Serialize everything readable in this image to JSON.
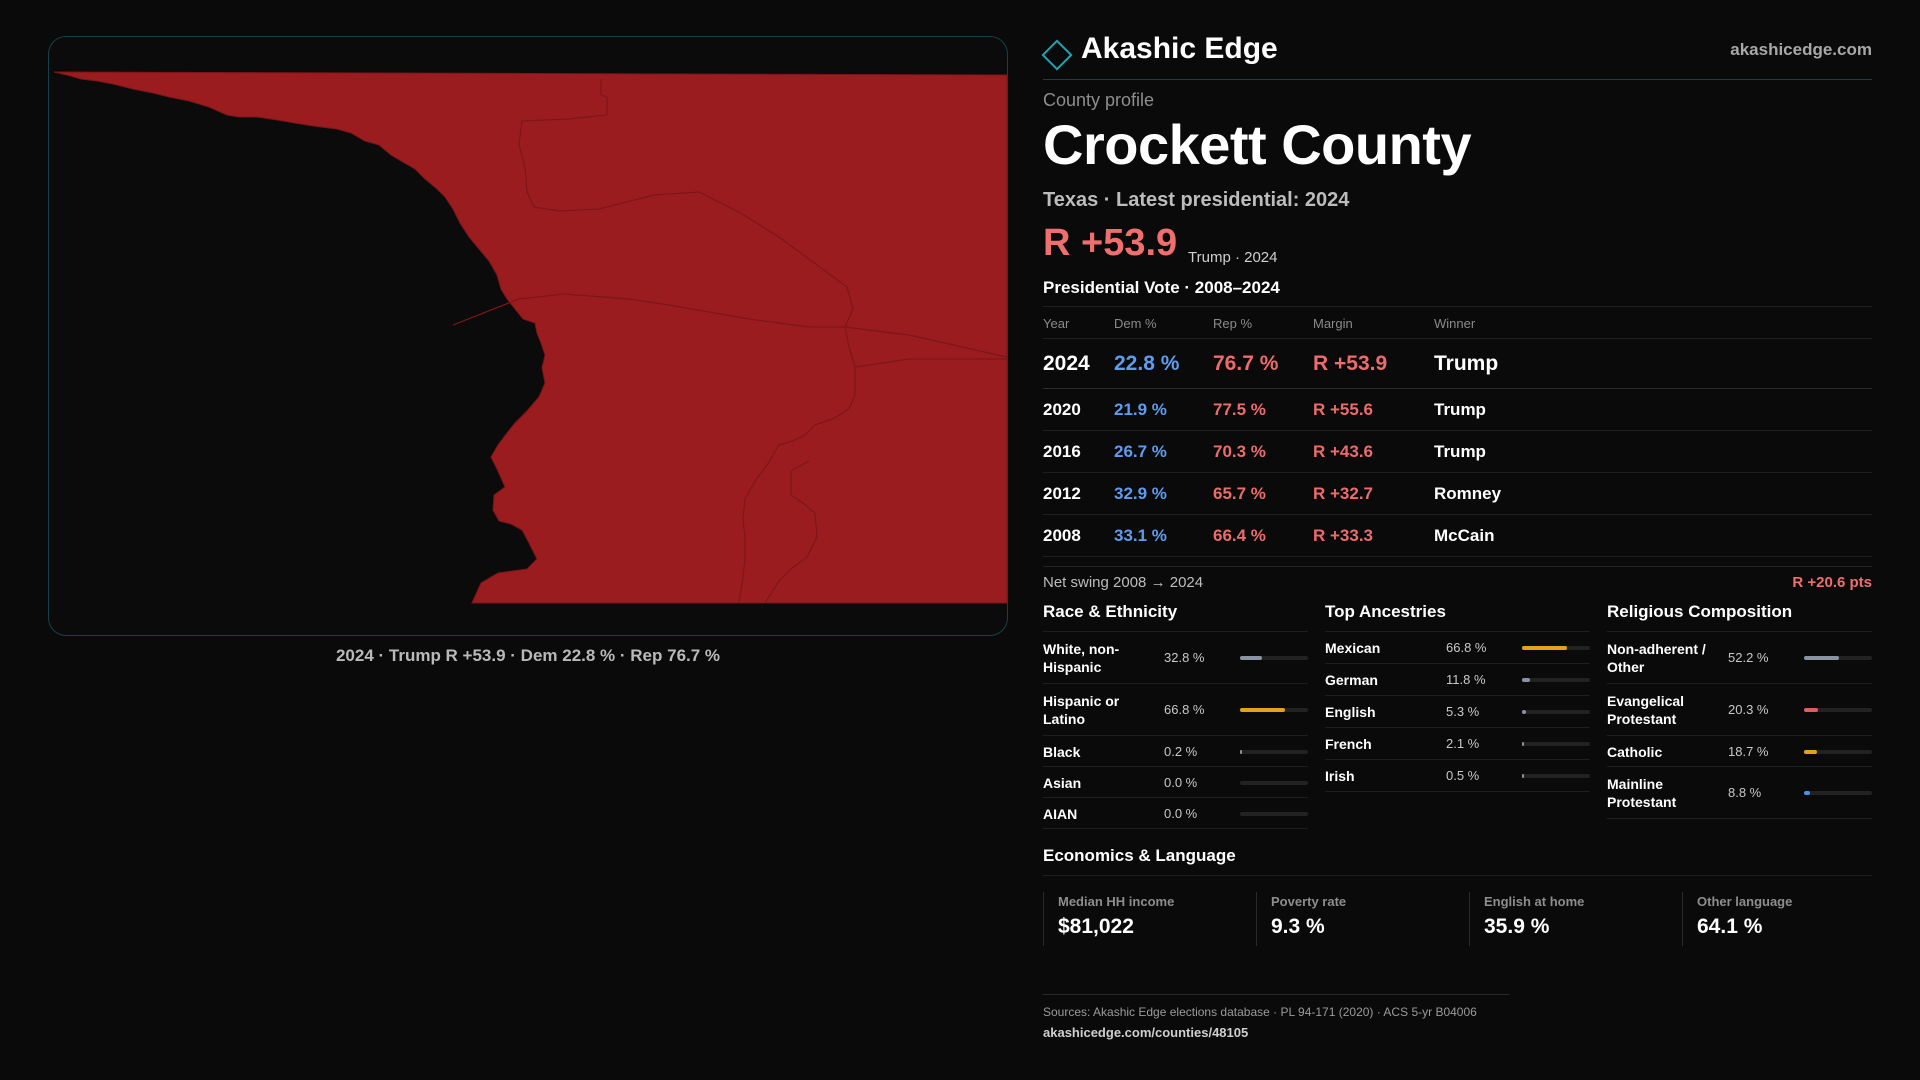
{
  "map": {
    "caption": "2024 · Trump R +53.9 · Dem 22.8 % · Rep 76.7 %",
    "fill_color": "#9b1c1f",
    "border_color": "#7a1518"
  },
  "brand": {
    "name": "Akashic Edge",
    "url": "akashicedge.com",
    "logo_icon": "diamond-icon",
    "accent": "#1fa3b3"
  },
  "profile": {
    "eyebrow": "County profile",
    "county": "Crockett County",
    "subtitle": "Texas · Latest presidential: 2024",
    "margin": "R +53.9",
    "margin_note": "Trump · 2024"
  },
  "vote": {
    "heading": "Presidential Vote · 2008–2024",
    "columns": {
      "year": "Year",
      "dem": "Dem %",
      "rep": "Rep %",
      "margin": "Margin",
      "winner": "Winner"
    },
    "rows": [
      {
        "year": "2024",
        "dem": "22.8 %",
        "rep": "76.7 %",
        "margin": "R +53.9",
        "winner": "Trump"
      },
      {
        "year": "2020",
        "dem": "21.9 %",
        "rep": "77.5 %",
        "margin": "R +55.6",
        "winner": "Trump"
      },
      {
        "year": "2016",
        "dem": "26.7 %",
        "rep": "70.3 %",
        "margin": "R +43.6",
        "winner": "Trump"
      },
      {
        "year": "2012",
        "dem": "32.9 %",
        "rep": "65.7 %",
        "margin": "R +32.7",
        "winner": "Romney"
      },
      {
        "year": "2008",
        "dem": "33.1 %",
        "rep": "66.4 %",
        "margin": "R +33.3",
        "winner": "McCain"
      }
    ],
    "swing_label": "Net swing 2008 → 2024",
    "swing_value": "R +20.6 pts"
  },
  "race": {
    "heading": "Race & Ethnicity",
    "items": [
      {
        "label": "White, non-Hispanic",
        "pct": "32.8 %",
        "value": 32.8,
        "color": "#8b93a3"
      },
      {
        "label": "Hispanic or Latino",
        "pct": "66.8 %",
        "value": 66.8,
        "color": "#e3a21a"
      },
      {
        "label": "Black",
        "pct": "0.2 %",
        "value": 0.2,
        "color": "#8b93a3"
      },
      {
        "label": "Asian",
        "pct": "0.0 %",
        "value": 0.0,
        "color": "#8b93a3"
      },
      {
        "label": "AIAN",
        "pct": "0.0 %",
        "value": 0.0,
        "color": "#8b93a3"
      }
    ]
  },
  "ancestry": {
    "heading": "Top Ancestries",
    "items": [
      {
        "label": "Mexican",
        "pct": "66.8 %",
        "value": 66.8,
        "color": "#e3a21a"
      },
      {
        "label": "German",
        "pct": "11.8 %",
        "value": 11.8,
        "color": "#8b93a3"
      },
      {
        "label": "English",
        "pct": "5.3 %",
        "value": 5.3,
        "color": "#8b93a3"
      },
      {
        "label": "French",
        "pct": "2.1 %",
        "value": 2.1,
        "color": "#8b93a3"
      },
      {
        "label": "Irish",
        "pct": "0.5 %",
        "value": 0.5,
        "color": "#8b93a3"
      }
    ]
  },
  "religion": {
    "heading": "Religious Composition",
    "items": [
      {
        "label": "Non-adherent / Other",
        "pct": "52.2 %",
        "value": 52.2,
        "color": "#8b93a3"
      },
      {
        "label": "Evangelical Protestant",
        "pct": "20.3 %",
        "value": 20.3,
        "color": "#e05c63"
      },
      {
        "label": "Catholic",
        "pct": "18.7 %",
        "value": 18.7,
        "color": "#e3a21a"
      },
      {
        "label": "Mainline Protestant",
        "pct": "8.8 %",
        "value": 8.8,
        "color": "#4f8fe6"
      }
    ]
  },
  "economics": {
    "heading": "Economics & Language",
    "cards": [
      {
        "label": "Median HH income",
        "value": "$81,022"
      },
      {
        "label": "Poverty rate",
        "value": "9.3 %"
      },
      {
        "label": "English at home",
        "value": "35.9 %"
      },
      {
        "label": "Other language",
        "value": "64.1 %"
      }
    ]
  },
  "sources": {
    "text": "Sources: Akashic Edge elections database · PL 94-171 (2020) · ACS 5-yr B04006",
    "link": "akashicedge.com/counties/48105"
  }
}
